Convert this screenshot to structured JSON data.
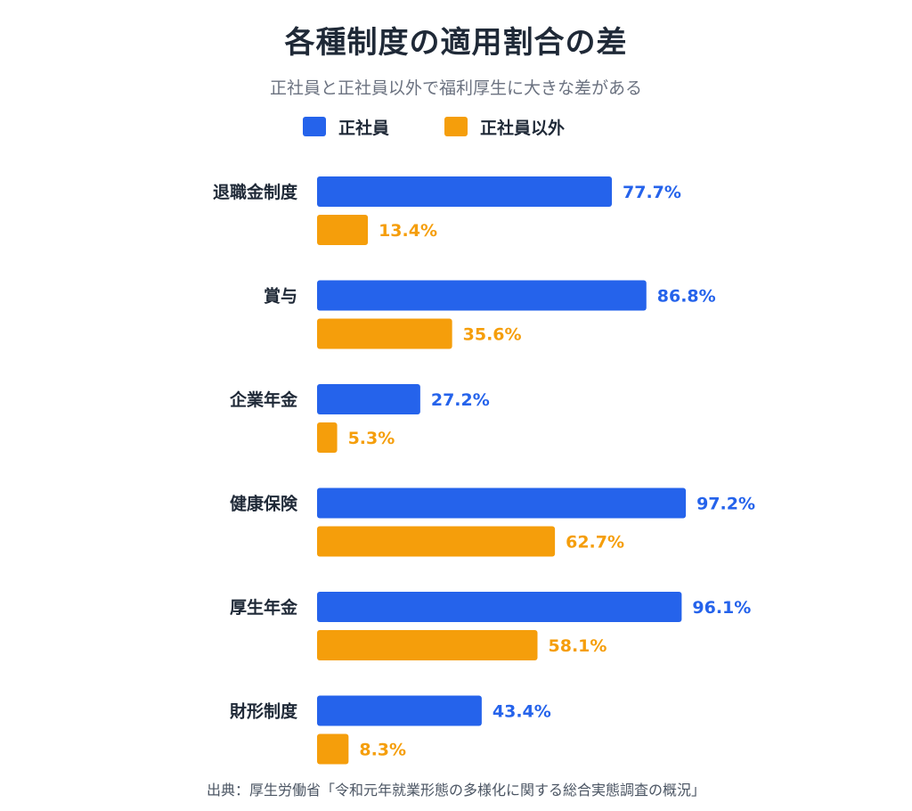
{
  "title": "各種制度の適用割合の差",
  "subtitle": "正社員と正社員以外で福利厚生に大きな差がある",
  "source": "出典：厚生労働省「令和元年就業形態の多様化に関する総合実態調査の概況」",
  "colors": {
    "regular": "#2563eb",
    "non_regular": "#f59e0b",
    "category_text": "#1f2937"
  },
  "chart_data": {
    "type": "bar",
    "orientation": "horizontal",
    "categories": [
      "退職金制度",
      "賞与",
      "企業年金",
      "健康保険",
      "厚生年金",
      "財形制度"
    ],
    "series": [
      {
        "name": "正社員",
        "values": [
          77.7,
          86.8,
          27.2,
          97.2,
          96.1,
          43.4
        ],
        "labels": [
          "77.7%",
          "86.8%",
          "27.2%",
          "97.2%",
          "96.1%",
          "43.4%"
        ]
      },
      {
        "name": "正社員以外",
        "values": [
          13.4,
          35.6,
          5.3,
          62.7,
          58.1,
          8.3
        ],
        "labels": [
          "13.4%",
          "35.6%",
          "5.3%",
          "62.7%",
          "58.1%",
          "8.3%"
        ]
      }
    ],
    "xlim": [
      0,
      100
    ],
    "legend": "top",
    "grid": false,
    "title": "各種制度の適用割合の差",
    "xlabel": "",
    "ylabel": ""
  }
}
